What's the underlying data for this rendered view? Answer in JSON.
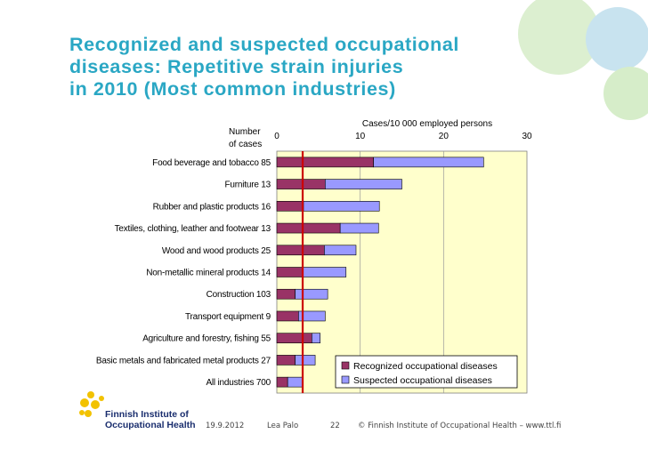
{
  "slide": {
    "title_lines": [
      "Recognized and suspected occupational",
      "diseases: Repetitive strain injuries",
      "in 2010 (Most common industries)"
    ]
  },
  "footer": {
    "date": "19.9.2012",
    "author": "Lea Palo",
    "page": "22",
    "copyright": "© Finnish Institute of Occupational Health   –   www.ttl.fi"
  },
  "logo": {
    "line1": "Finnish Institute of",
    "line2": "Occupational Health"
  },
  "colors": {
    "recognized": "#993366",
    "suspected": "#9999ff",
    "plot_bg": "#ffffcc",
    "reference_line": "#cc0000",
    "title": "#2aa7c4"
  },
  "chart_data": {
    "type": "bar",
    "orientation": "horizontal",
    "stacked": true,
    "x_axis_title": "Cases/10 000 employed persons",
    "y_axis_title": "Number of cases",
    "xlim": [
      0,
      30
    ],
    "xticks": [
      0,
      10,
      20,
      30
    ],
    "categories": [
      "Food beverage and tobacco 85",
      "Furniture 13",
      "Rubber and plastic products 16",
      "Textiles, clothing, leather and footwear 13",
      "Wood and wood products 25",
      "Non-metallic mineral products 14",
      "Construction 103",
      "Transport equipment 9",
      "Agriculture and forestry, fishing 55",
      "Basic metals and fabricated metal products 27",
      "All industries 700"
    ],
    "series": [
      {
        "name": "Recognized occupational diseases",
        "values": [
          11.6,
          5.8,
          3.2,
          7.6,
          5.7,
          3.1,
          2.2,
          2.6,
          4.2,
          2.2,
          1.3
        ]
      },
      {
        "name": "Suspected occupational diseases",
        "values": [
          13.2,
          9.2,
          9.1,
          4.6,
          3.8,
          5.2,
          3.9,
          3.2,
          1.0,
          2.4,
          1.8
        ]
      }
    ],
    "reference_line_x": 3.1,
    "legend_position": "bottom-right"
  }
}
